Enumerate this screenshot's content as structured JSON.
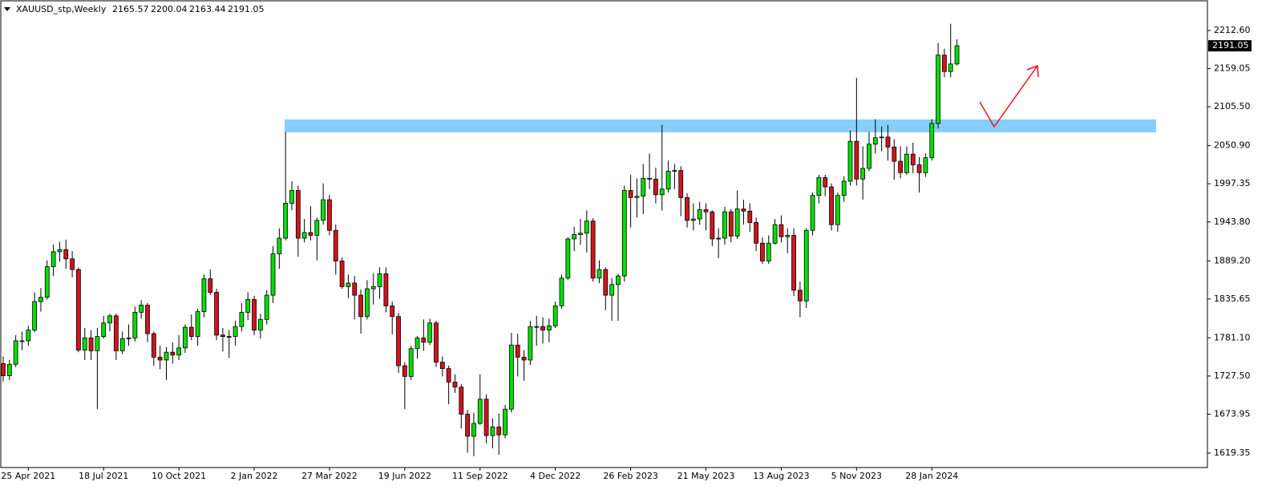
{
  "chart_data": {
    "type": "candlestick",
    "symbol": "XAUUSD_stp,Weekly",
    "up_color": "#00e000",
    "down_color": "#d1141d",
    "ylim": [
      1599.1,
      2253.1
    ],
    "yticks": [
      {
        "value": 2212.6,
        "label": "2212.60"
      },
      2159.05,
      {
        "value": 2105.5,
        "label": "2105.50"
      },
      {
        "value": 2050.9,
        "label": "2050.90"
      },
      1997.35,
      {
        "value": 1943.8,
        "label": "1943.80"
      },
      {
        "value": 1889.2,
        "label": "1889.20"
      },
      1835.65,
      {
        "value": 1781.1,
        "label": "1781.10"
      },
      {
        "value": 1727.5,
        "label": "1727.50"
      },
      1673.95,
      1619.35
    ],
    "categories": [
      null,
      null,
      null,
      null,
      "25 Apr 2021",
      null,
      null,
      null,
      null,
      null,
      null,
      null,
      null,
      null,
      null,
      null,
      "18 Jul 2021",
      null,
      null,
      null,
      null,
      null,
      null,
      null,
      null,
      null,
      null,
      null,
      "10 Oct 2021",
      null,
      null,
      null,
      null,
      null,
      null,
      null,
      null,
      null,
      null,
      null,
      "2 Jan 2022",
      null,
      null,
      null,
      null,
      null,
      null,
      null,
      null,
      null,
      null,
      null,
      "27 Mar 2022",
      null,
      null,
      null,
      null,
      null,
      null,
      null,
      null,
      null,
      null,
      null,
      "19 Jun 2022",
      null,
      null,
      null,
      null,
      null,
      null,
      null,
      null,
      null,
      null,
      null,
      "11 Sep 2022",
      null,
      null,
      null,
      null,
      null,
      null,
      null,
      null,
      null,
      null,
      null,
      "4 Dec 2022",
      null,
      null,
      null,
      null,
      null,
      null,
      null,
      null,
      null,
      null,
      null,
      "26 Feb 2023",
      null,
      null,
      null,
      null,
      null,
      null,
      null,
      null,
      null,
      null,
      null,
      "21 May 2023",
      null,
      null,
      null,
      null,
      null,
      null,
      null,
      null,
      null,
      null,
      null,
      "13 Aug 2023",
      null,
      null,
      null,
      null,
      null,
      null,
      null,
      null,
      null,
      null,
      null,
      "5 Nov 2023",
      null,
      null,
      null,
      null,
      null,
      null,
      null,
      null,
      null,
      null,
      null,
      "28 Jan 2024",
      null,
      null,
      null,
      null
    ],
    "ohlc": [
      [
        1745,
        1755,
        1720,
        1728
      ],
      [
        1728,
        1750,
        1722,
        1744
      ],
      [
        1744,
        1785,
        1740,
        1777
      ],
      [
        1777,
        1790,
        1764,
        1777
      ],
      [
        1777,
        1798,
        1770,
        1792
      ],
      [
        1792,
        1845,
        1789,
        1832
      ],
      [
        1832,
        1851,
        1818,
        1838
      ],
      [
        1838,
        1890,
        1835,
        1881
      ],
      [
        1881,
        1912,
        1868,
        1902
      ],
      [
        1902,
        1916,
        1888,
        1905
      ],
      [
        1905,
        1919,
        1878,
        1892
      ],
      [
        1892,
        1903,
        1866,
        1877
      ],
      [
        1877,
        1880,
        1761,
        1764
      ],
      [
        1764,
        1795,
        1750,
        1781
      ],
      [
        1781,
        1792,
        1750,
        1763
      ],
      [
        1763,
        1795,
        1681,
        1783
      ],
      [
        1783,
        1812,
        1780,
        1802
      ],
      [
        1802,
        1815,
        1790,
        1812
      ],
      [
        1812,
        1815,
        1750,
        1763
      ],
      [
        1763,
        1790,
        1758,
        1780
      ],
      [
        1780,
        1800,
        1770,
        1781
      ],
      [
        1781,
        1825,
        1776,
        1817
      ],
      [
        1817,
        1834,
        1808,
        1827
      ],
      [
        1827,
        1830,
        1775,
        1787
      ],
      [
        1787,
        1790,
        1742,
        1754
      ],
      [
        1754,
        1770,
        1737,
        1750
      ],
      [
        1750,
        1768,
        1722,
        1761
      ],
      [
        1761,
        1775,
        1745,
        1757
      ],
      [
        1757,
        1785,
        1750,
        1767
      ],
      [
        1767,
        1800,
        1760,
        1796
      ],
      [
        1796,
        1814,
        1778,
        1783
      ],
      [
        1783,
        1822,
        1770,
        1818
      ],
      [
        1818,
        1870,
        1810,
        1864
      ],
      [
        1864,
        1877,
        1841,
        1845
      ],
      [
        1845,
        1850,
        1778,
        1785
      ],
      [
        1785,
        1795,
        1762,
        1783
      ],
      [
        1783,
        1792,
        1753,
        1783
      ],
      [
        1783,
        1805,
        1770,
        1797
      ],
      [
        1797,
        1830,
        1790,
        1817
      ],
      [
        1817,
        1845,
        1806,
        1835
      ],
      [
        1835,
        1840,
        1785,
        1792
      ],
      [
        1792,
        1815,
        1780,
        1807
      ],
      [
        1807,
        1848,
        1800,
        1841
      ],
      [
        1841,
        1910,
        1830,
        1899
      ],
      [
        1899,
        1935,
        1878,
        1921
      ],
      [
        1921,
        2070,
        1918,
        1970
      ],
      [
        1970,
        2001,
        1960,
        1988
      ],
      [
        1988,
        1995,
        1895,
        1921
      ],
      [
        1921,
        1948,
        1915,
        1929
      ],
      [
        1929,
        1966,
        1918,
        1925
      ],
      [
        1925,
        1950,
        1890,
        1946
      ],
      [
        1946,
        1998,
        1940,
        1975
      ],
      [
        1975,
        1982,
        1925,
        1932
      ],
      [
        1932,
        1940,
        1870,
        1889
      ],
      [
        1889,
        1894,
        1850,
        1853
      ],
      [
        1853,
        1870,
        1837,
        1858
      ],
      [
        1858,
        1868,
        1807,
        1841
      ],
      [
        1841,
        1849,
        1787,
        1811
      ],
      [
        1811,
        1862,
        1807,
        1850
      ],
      [
        1850,
        1872,
        1828,
        1853
      ],
      [
        1853,
        1880,
        1836,
        1871
      ],
      [
        1871,
        1880,
        1817,
        1826
      ],
      [
        1826,
        1832,
        1786,
        1811
      ],
      [
        1811,
        1816,
        1732,
        1742
      ],
      [
        1742,
        1747,
        1681,
        1727
      ],
      [
        1727,
        1770,
        1722,
        1766
      ],
      [
        1766,
        1784,
        1752,
        1781
      ],
      [
        1781,
        1807,
        1763,
        1775
      ],
      [
        1775,
        1808,
        1771,
        1802
      ],
      [
        1802,
        1805,
        1740,
        1747
      ],
      [
        1747,
        1755,
        1727,
        1738
      ],
      [
        1738,
        1742,
        1688,
        1719
      ],
      [
        1719,
        1730,
        1704,
        1712
      ],
      [
        1712,
        1716,
        1654,
        1674
      ],
      [
        1674,
        1680,
        1620,
        1643
      ],
      [
        1643,
        1676,
        1615,
        1661
      ],
      [
        1661,
        1730,
        1659,
        1695
      ],
      [
        1695,
        1702,
        1633,
        1644
      ],
      [
        1644,
        1668,
        1626,
        1656
      ],
      [
        1656,
        1675,
        1617,
        1645
      ],
      [
        1645,
        1687,
        1640,
        1681
      ],
      [
        1681,
        1788,
        1676,
        1771
      ],
      [
        1771,
        1787,
        1727,
        1754
      ],
      [
        1754,
        1764,
        1721,
        1750
      ],
      [
        1750,
        1805,
        1743,
        1797
      ],
      [
        1797,
        1812,
        1770,
        1797
      ],
      [
        1797,
        1810,
        1773,
        1792
      ],
      [
        1792,
        1808,
        1775,
        1798
      ],
      [
        1798,
        1832,
        1795,
        1826
      ],
      [
        1826,
        1870,
        1822,
        1865
      ],
      [
        1865,
        1922,
        1862,
        1920
      ],
      [
        1920,
        1937,
        1903,
        1926
      ],
      [
        1926,
        1948,
        1912,
        1928
      ],
      [
        1928,
        1960,
        1901,
        1945
      ],
      [
        1945,
        1949,
        1860,
        1865
      ],
      [
        1865,
        1890,
        1858,
        1877
      ],
      [
        1877,
        1880,
        1820,
        1841
      ],
      [
        1841,
        1865,
        1805,
        1856
      ],
      [
        1856,
        1871,
        1805,
        1868
      ],
      [
        1868,
        1995,
        1860,
        1988
      ],
      [
        1988,
        2010,
        1936,
        1978
      ],
      [
        1978,
        2005,
        1950,
        1980
      ],
      [
        1980,
        2025,
        1955,
        2005
      ],
      [
        2005,
        2040,
        1990,
        2004
      ],
      [
        2004,
        2020,
        1970,
        1982
      ],
      [
        1982,
        2080,
        1960,
        1990
      ],
      [
        1990,
        2030,
        1985,
        2015
      ],
      [
        2015,
        2025,
        1990,
        2016
      ],
      [
        2016,
        2022,
        1952,
        1978
      ],
      [
        1978,
        1984,
        1936,
        1946
      ],
      [
        1946,
        1970,
        1932,
        1948
      ],
      [
        1948,
        1972,
        1940,
        1961
      ],
      [
        1961,
        1970,
        1932,
        1958
      ],
      [
        1958,
        1960,
        1910,
        1920
      ],
      [
        1920,
        1935,
        1893,
        1921
      ],
      [
        1921,
        1965,
        1912,
        1958
      ],
      [
        1958,
        1962,
        1915,
        1924
      ],
      [
        1924,
        1988,
        1920,
        1962
      ],
      [
        1962,
        1975,
        1940,
        1959
      ],
      [
        1959,
        1970,
        1930,
        1943
      ],
      [
        1943,
        1950,
        1903,
        1914
      ],
      [
        1914,
        1922,
        1885,
        1889
      ],
      [
        1889,
        1925,
        1885,
        1914
      ],
      [
        1914,
        1948,
        1912,
        1940
      ],
      [
        1940,
        1953,
        1915,
        1923
      ],
      [
        1923,
        1935,
        1900,
        1925
      ],
      [
        1925,
        1935,
        1840,
        1848
      ],
      [
        1848,
        1860,
        1810,
        1833
      ],
      [
        1833,
        1935,
        1823,
        1932
      ],
      [
        1932,
        1985,
        1925,
        1981
      ],
      [
        1981,
        2010,
        1970,
        2006
      ],
      [
        2006,
        2010,
        1980,
        1993
      ],
      [
        1993,
        1998,
        1932,
        1940
      ],
      [
        1940,
        1985,
        1930,
        1981
      ],
      [
        1981,
        2008,
        1972,
        2001
      ],
      [
        2001,
        2072,
        1995,
        2057
      ],
      [
        2057,
        2146,
        1995,
        2004
      ],
      [
        2004,
        2050,
        1975,
        2019
      ],
      [
        2019,
        2070,
        2015,
        2053
      ],
      [
        2053,
        2088,
        2040,
        2062
      ],
      [
        2062,
        2078,
        2043,
        2063
      ],
      [
        2063,
        2080,
        2030,
        2049
      ],
      [
        2049,
        2060,
        2003,
        2029
      ],
      [
        2029,
        2050,
        2005,
        2013
      ],
      [
        2013,
        2050,
        2010,
        2039
      ],
      [
        2039,
        2055,
        2012,
        2024
      ],
      [
        2024,
        2035,
        1985,
        2013
      ],
      [
        2013,
        2040,
        2007,
        2034
      ],
      [
        2034,
        2088,
        2030,
        2082
      ],
      [
        2082,
        2195,
        2075,
        2178
      ],
      [
        2178,
        2187,
        2147,
        2155
      ],
      [
        2155,
        2222,
        2147,
        2165.57
      ],
      [
        2165.57,
        2200.04,
        2163.44,
        2191.05
      ]
    ]
  }
}
